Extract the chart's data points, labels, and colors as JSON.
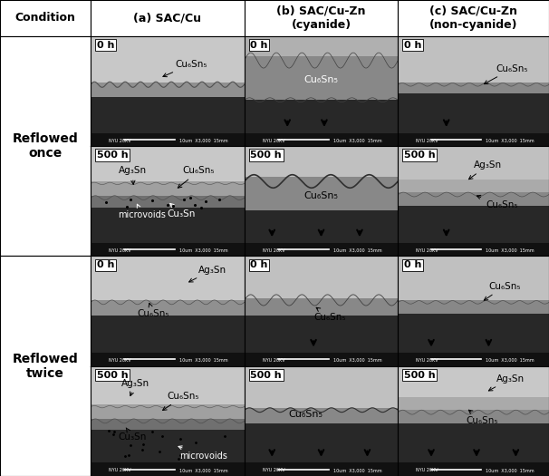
{
  "title_row": [
    "Condition",
    "(a) SAC/Cu",
    "(b) SAC/Cu-Zn\n(cyanide)",
    "(c) SAC/Cu-Zn\n(non-cyanide)"
  ],
  "row_labels": [
    "Reflowed\nonce",
    "Reflowed\ntwice"
  ],
  "background_color": "#ffffff",
  "grid_color": "#000000",
  "header_fontsize": 9,
  "label_fontsize": 7.5,
  "time_fontsize": 8,
  "row_label_fontsize": 10
}
